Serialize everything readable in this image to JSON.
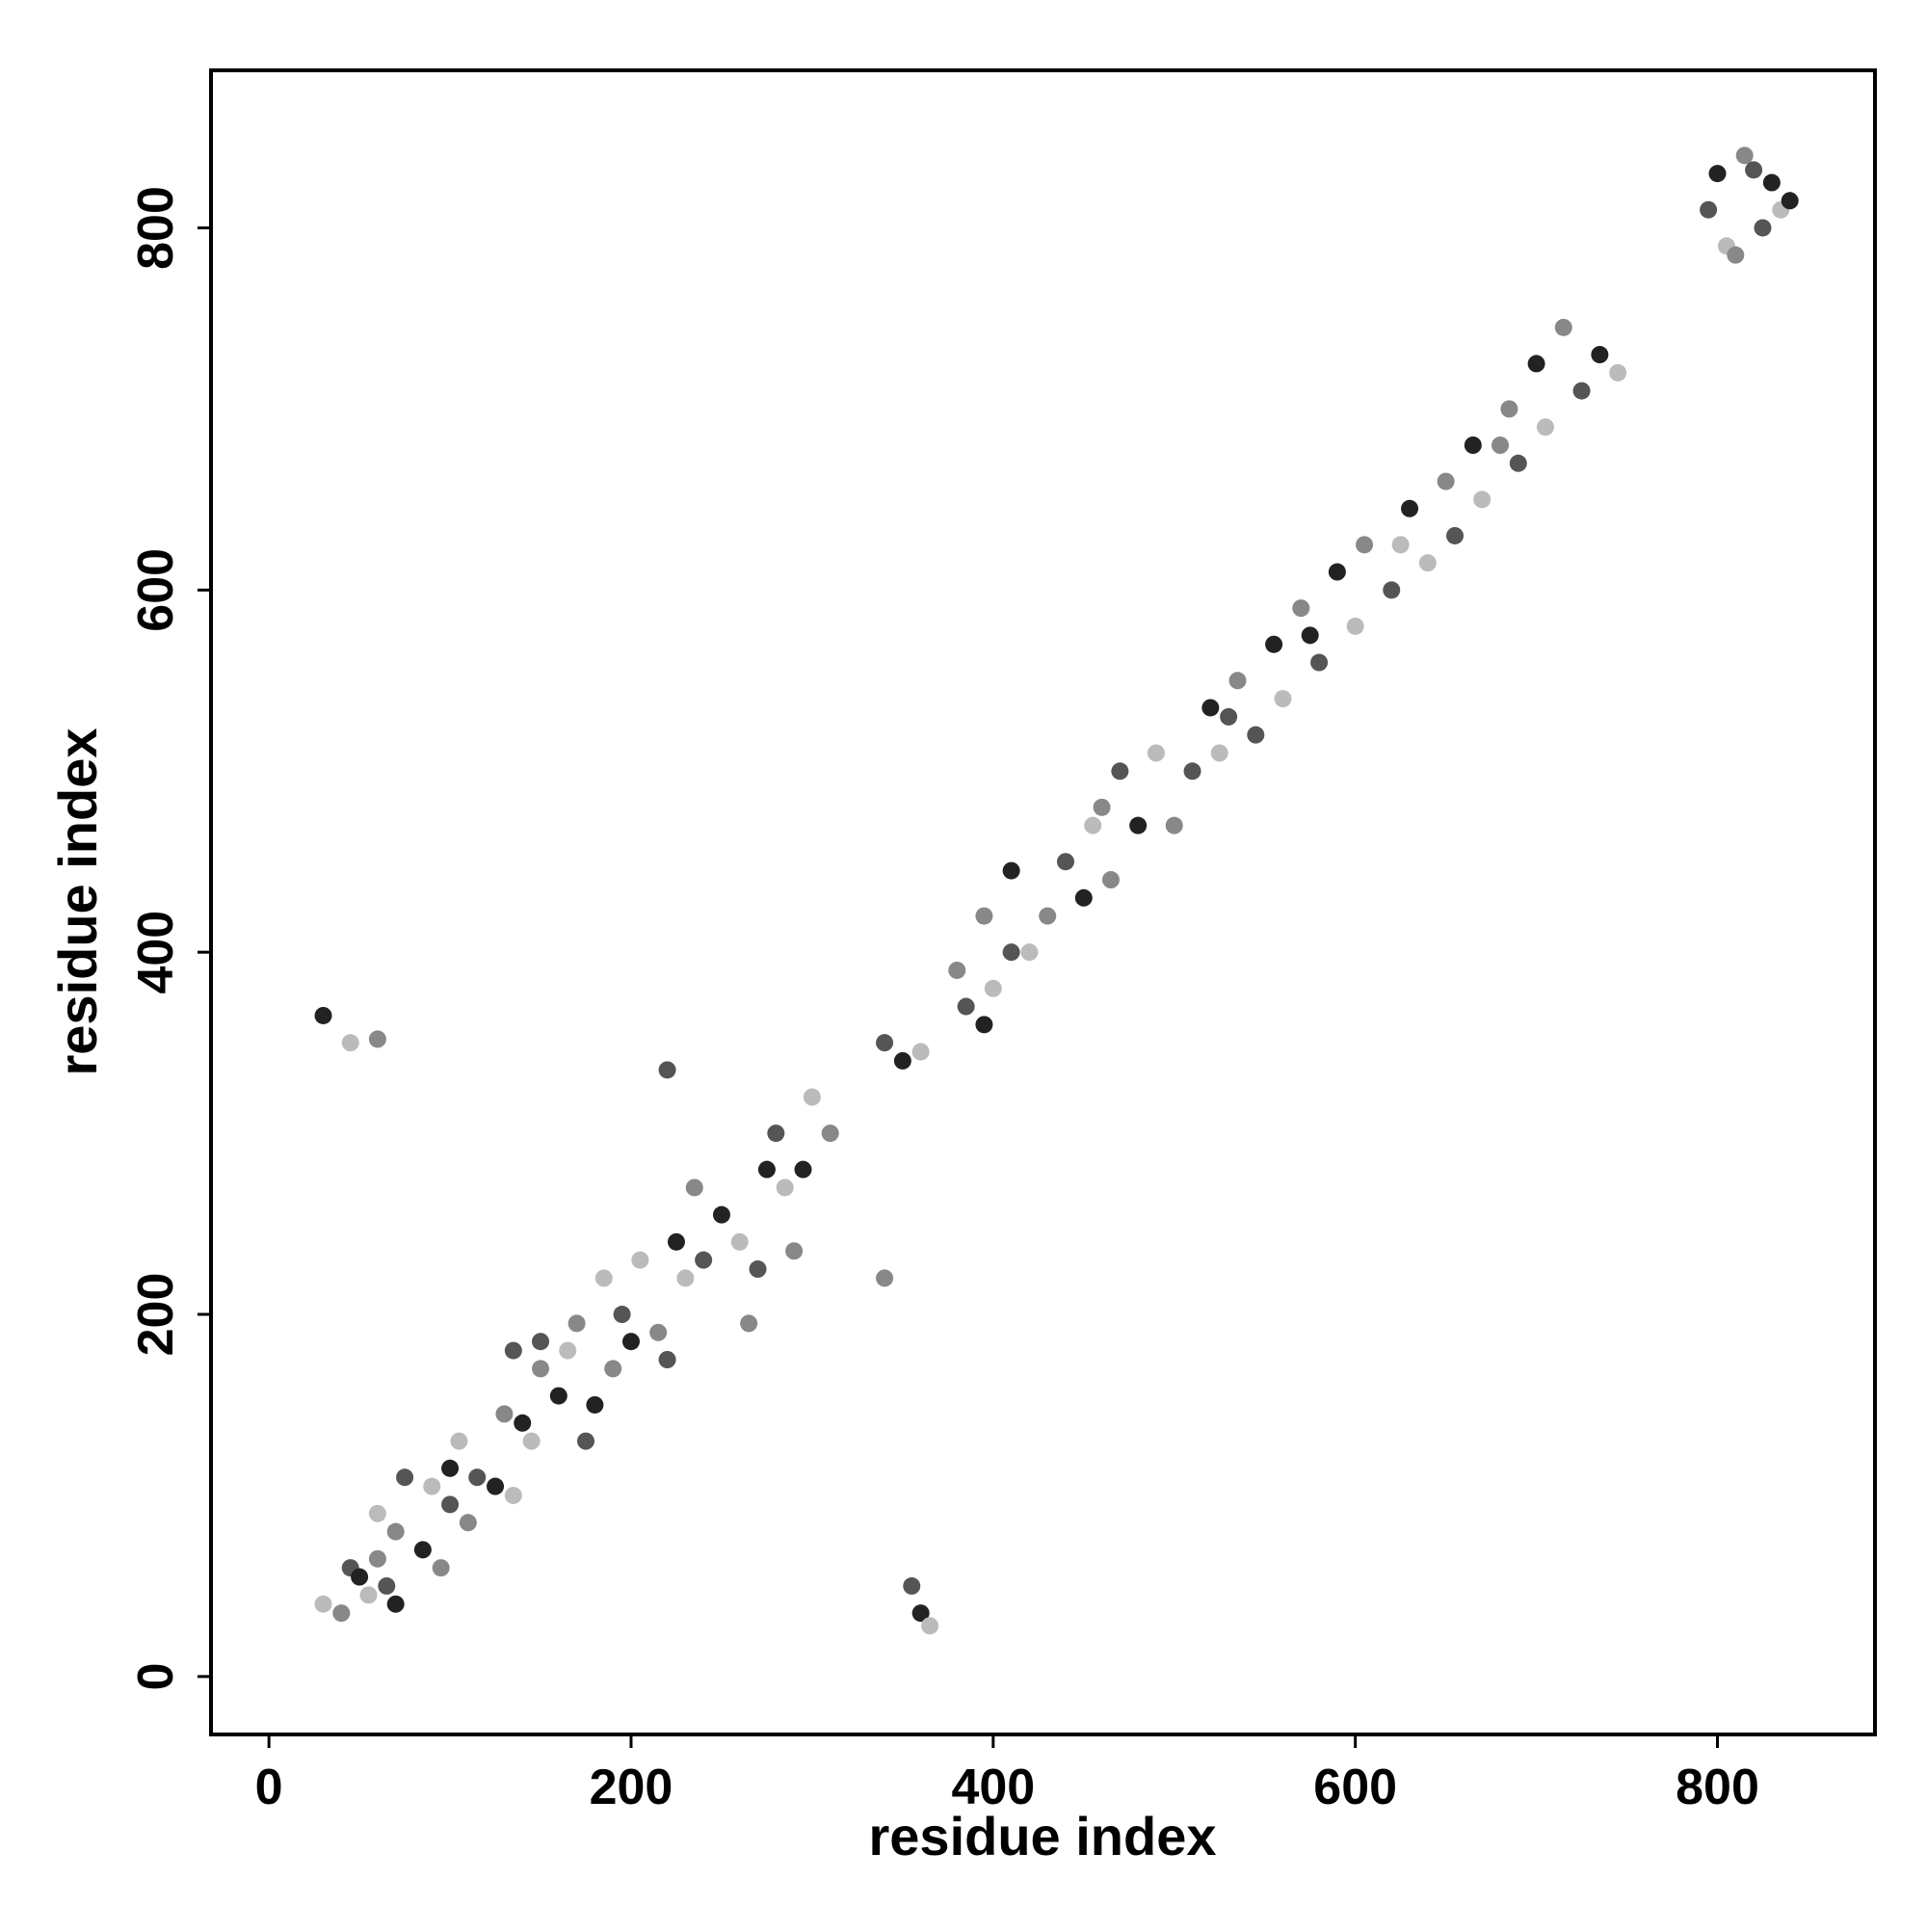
{
  "chart_data": {
    "type": "scatter",
    "xlabel": "residue index",
    "ylabel": "residue index",
    "xlim": [
      -32,
      887
    ],
    "ylim": [
      -32,
      887
    ],
    "xticks": [
      0,
      200,
      400,
      600,
      800
    ],
    "yticks": [
      0,
      200,
      400,
      600,
      800
    ],
    "grid": false,
    "x": [
      30,
      40,
      45,
      50,
      55,
      60,
      65,
      70,
      60,
      70,
      75,
      85,
      90,
      95,
      100,
      100,
      105,
      110,
      115,
      125,
      135,
      130,
      135,
      140,
      145,
      150,
      150,
      160,
      165,
      170,
      175,
      180,
      185,
      190,
      195,
      200,
      205,
      215,
      220,
      225,
      230,
      235,
      240,
      250,
      260,
      265,
      270,
      275,
      285,
      290,
      280,
      295,
      300,
      310,
      340,
      350,
      360,
      340,
      220,
      30,
      45,
      60,
      355,
      360,
      365,
      380,
      385,
      395,
      400,
      395,
      410,
      410,
      420,
      430,
      440,
      450,
      455,
      465,
      470,
      480,
      490,
      500,
      510,
      520,
      525,
      535,
      545,
      555,
      560,
      570,
      580,
      590,
      600,
      605,
      620,
      630,
      640,
      650,
      655,
      665,
      670,
      685,
      690,
      700,
      705,
      715,
      725,
      735,
      745,
      460,
      530,
      575,
      625,
      680,
      795,
      800,
      805,
      815,
      825,
      830,
      835,
      810,
      820,
      840
    ],
    "y": [
      40,
      35,
      60,
      55,
      45,
      65,
      50,
      40,
      90,
      80,
      110,
      70,
      105,
      60,
      95,
      115,
      130,
      85,
      110,
      105,
      100,
      145,
      180,
      140,
      130,
      170,
      185,
      155,
      180,
      195,
      130,
      150,
      220,
      170,
      200,
      185,
      230,
      190,
      175,
      240,
      220,
      270,
      230,
      255,
      240,
      195,
      225,
      280,
      270,
      235,
      300,
      280,
      320,
      300,
      350,
      340,
      345,
      220,
      335,
      365,
      350,
      352,
      50,
      35,
      28,
      390,
      370,
      360,
      380,
      420,
      400,
      445,
      400,
      420,
      450,
      430,
      470,
      440,
      500,
      470,
      510,
      470,
      500,
      535,
      510,
      550,
      520,
      570,
      540,
      590,
      560,
      610,
      580,
      625,
      600,
      645,
      615,
      660,
      630,
      680,
      650,
      700,
      670,
      725,
      690,
      745,
      710,
      730,
      720,
      480,
      530,
      575,
      625,
      680,
      810,
      830,
      790,
      840,
      800,
      825,
      810,
      785,
      832,
      815
    ],
    "colors": [
      "#bbbbbb",
      "#888888",
      "#555555",
      "#222222"
    ]
  }
}
